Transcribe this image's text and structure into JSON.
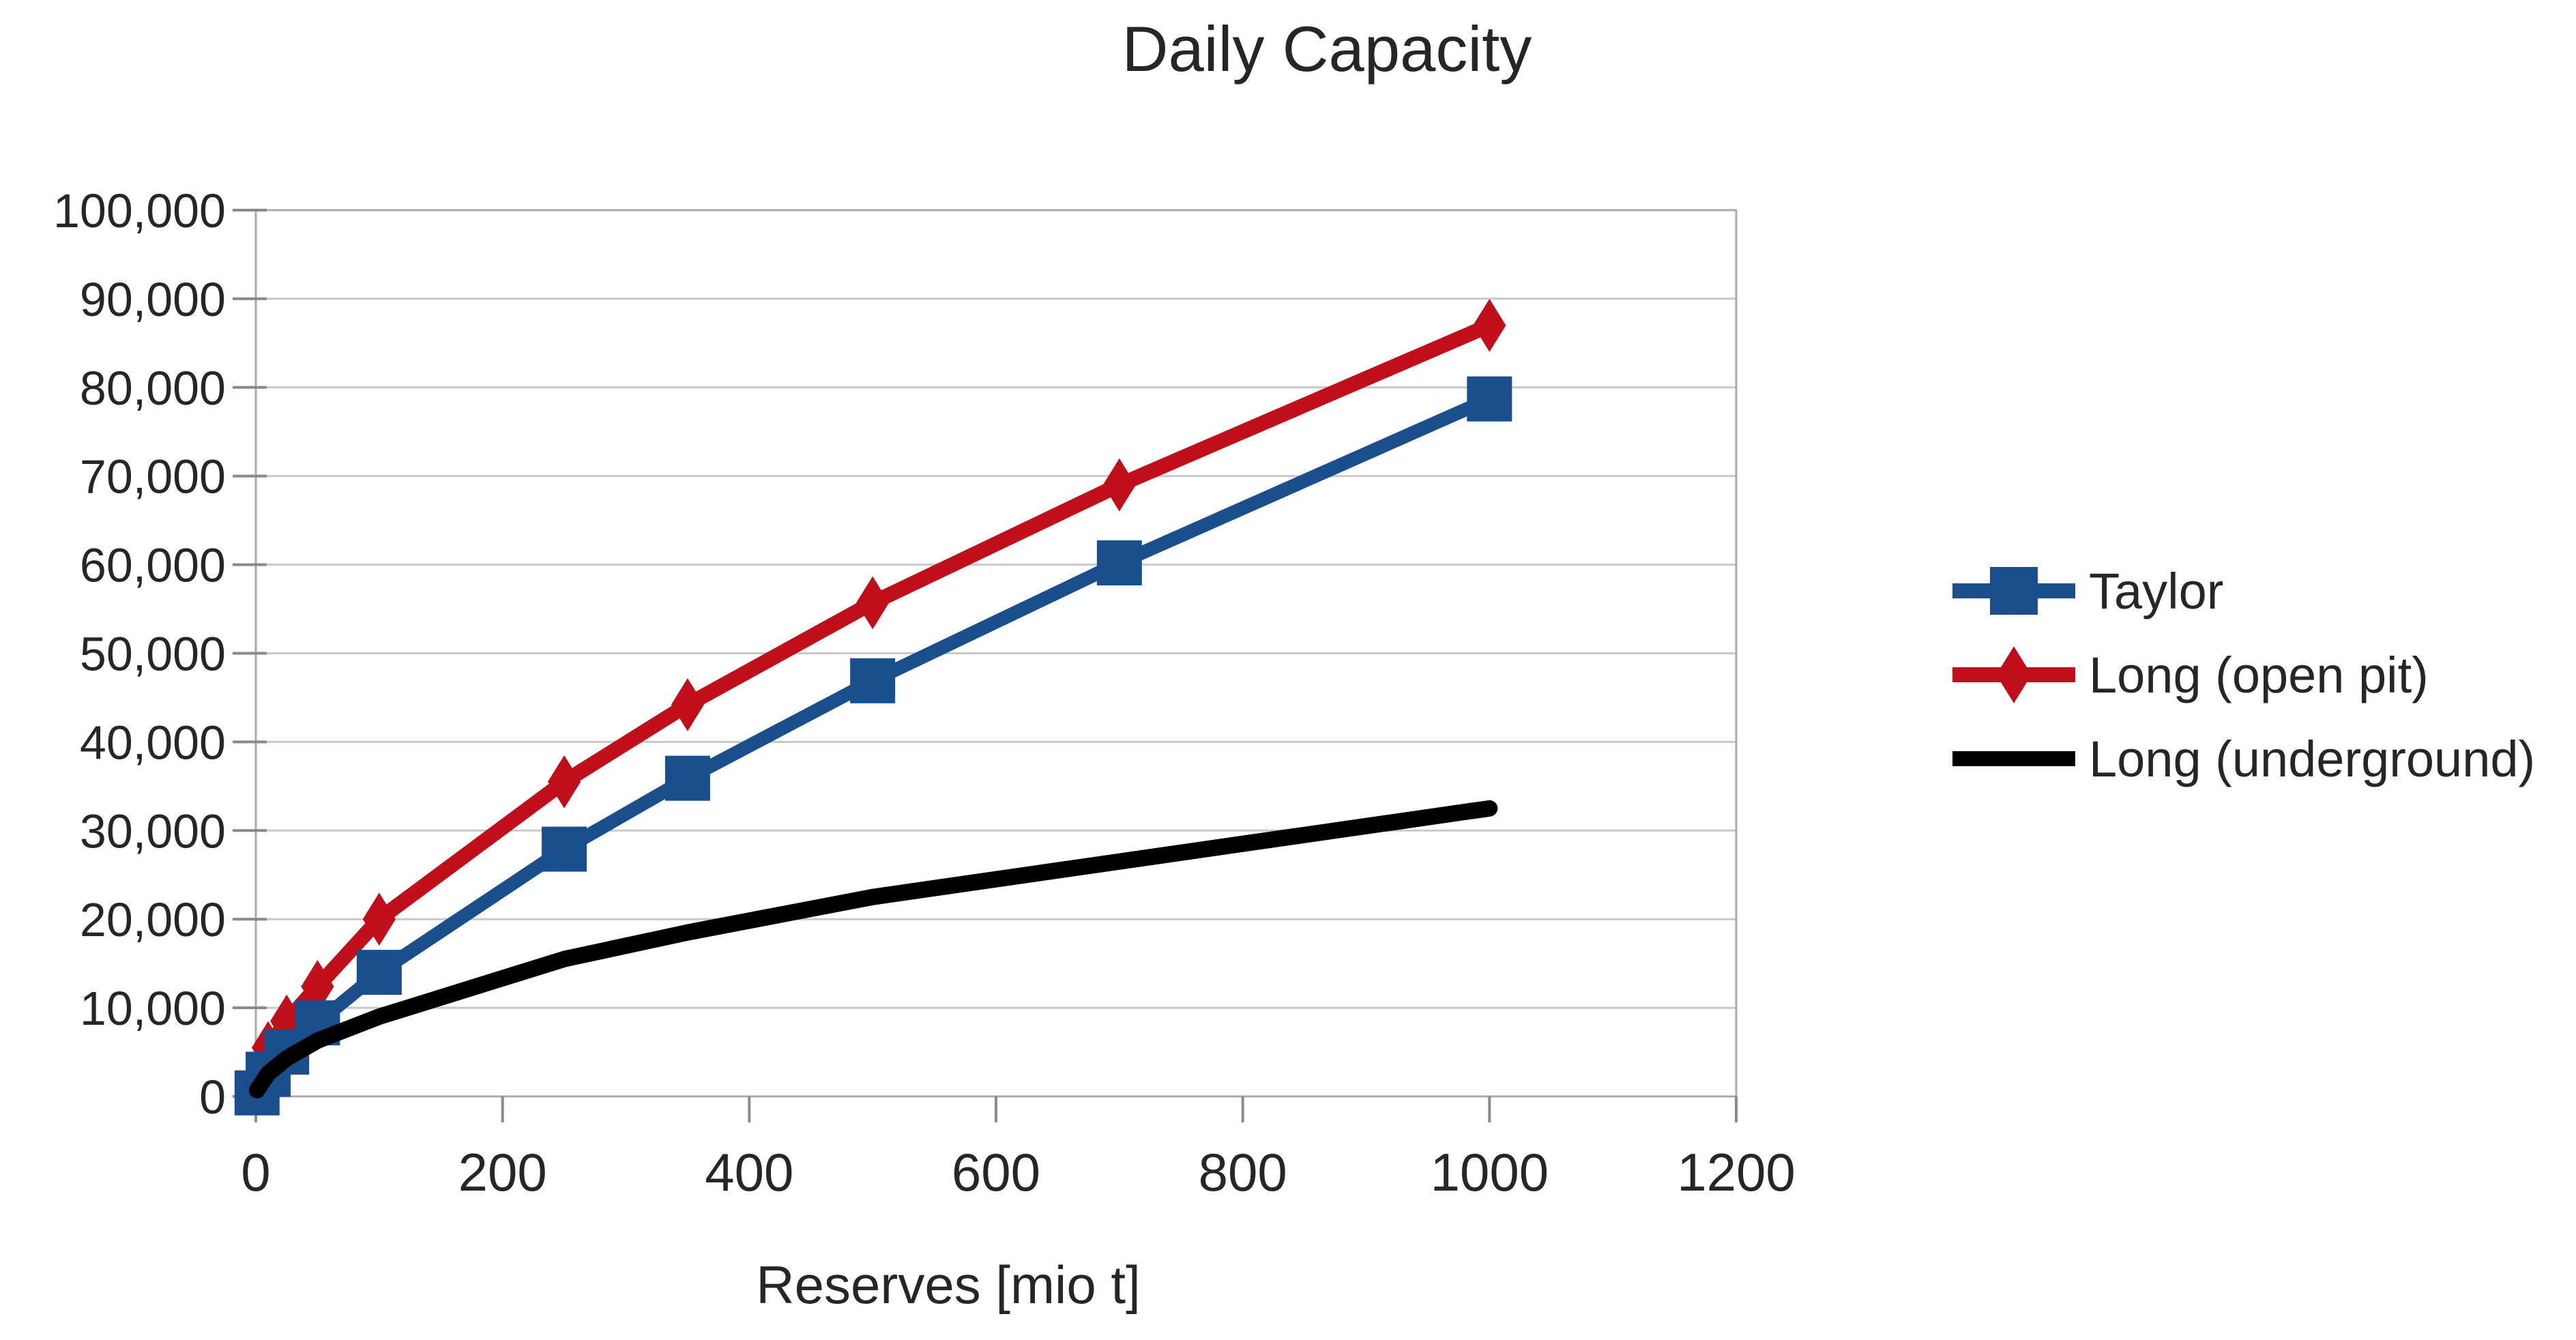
{
  "title": "Daily Capacity",
  "chart_data": {
    "type": "line",
    "title": "Daily Capacity",
    "xlabel": "Reserves [mio t]",
    "ylabel": "",
    "xlim": [
      0,
      1200
    ],
    "ylim": [
      0,
      100000
    ],
    "x_ticks": [
      0,
      200,
      400,
      600,
      800,
      1000,
      1200
    ],
    "y_ticks": [
      0,
      10000,
      20000,
      30000,
      40000,
      50000,
      60000,
      70000,
      80000,
      90000,
      100000
    ],
    "grid": "horizontal",
    "legend_position": "right",
    "x": [
      1,
      10,
      25,
      50,
      100,
      250,
      350,
      500,
      700,
      1000
    ],
    "series": [
      {
        "name": "Taylor",
        "color": "#1B4E8C",
        "marker": "square",
        "line_width": 20,
        "values": [
          400,
          2500,
          5000,
          8300,
          14000,
          27900,
          35900,
          46900,
          60200,
          78700
        ]
      },
      {
        "name": "Long (open pit)",
        "color": "#C00F1B",
        "marker": "diamond",
        "line_width": 22,
        "values": [
          1000,
          5500,
          8500,
          12400,
          20000,
          35500,
          44200,
          55700,
          69000,
          87000
        ]
      },
      {
        "name": "Long (underground)",
        "color": "#000000",
        "marker": "none",
        "line_width": 24,
        "values": [
          700,
          2600,
          4300,
          6300,
          9000,
          15500,
          18500,
          22500,
          26500,
          32500
        ]
      }
    ]
  },
  "style_colors": {
    "grid": "#C8C8C8",
    "plot_border": "#ABABAB",
    "tick": "#8A8A8A",
    "text": "#262626",
    "background": "#FFFFFF"
  }
}
